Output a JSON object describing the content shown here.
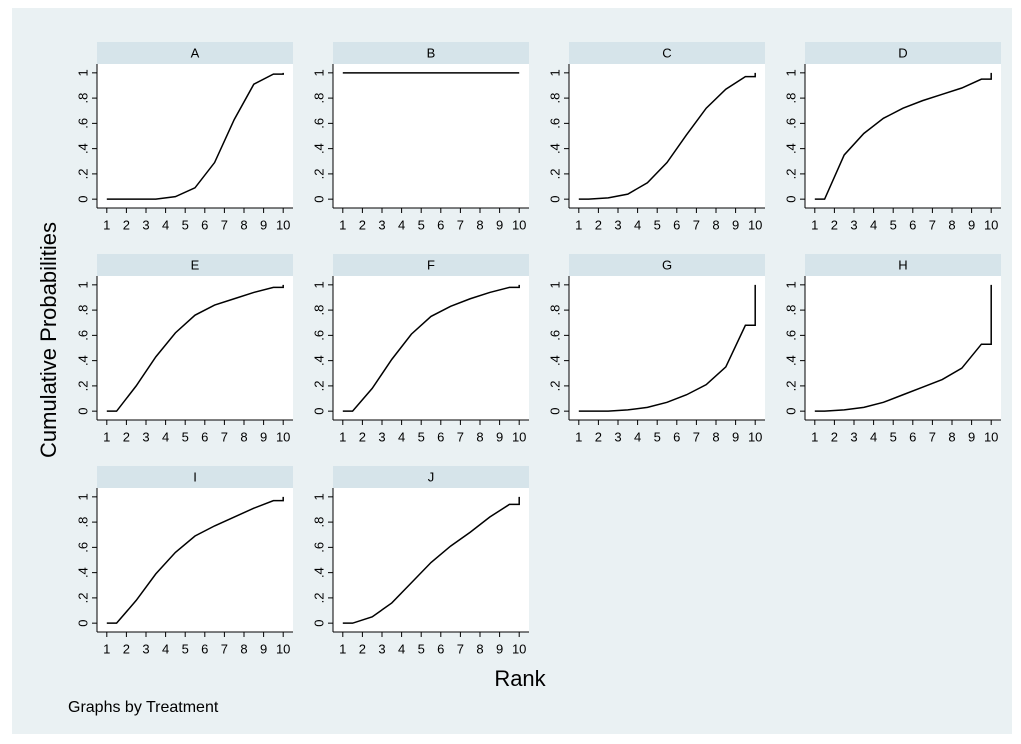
{
  "ylabel": "Cumulative Probabilities",
  "xlabel": "Rank",
  "note": "Graphs by Treatment",
  "chart_data": [
    {
      "type": "line",
      "title": "A",
      "color": "#000000",
      "x": [
        1,
        1.5,
        2.5,
        3.5,
        4.5,
        5.5,
        6.5,
        7.5,
        8.5,
        9.5,
        10,
        10
      ],
      "values": [
        0,
        0,
        0,
        0,
        0.02,
        0.09,
        0.29,
        0.63,
        0.91,
        0.99,
        0.99,
        1
      ],
      "xlim": [
        0.5,
        10.5
      ],
      "ylim": [
        -0.07,
        1.07
      ],
      "xticks": [
        1,
        2,
        3,
        4,
        5,
        6,
        7,
        8,
        9,
        10
      ],
      "yticks": [
        0,
        {
          "value": 0.2,
          "label": ".2"
        },
        {
          "value": 0.4,
          "label": ".4"
        },
        {
          "value": 0.6,
          "label": ".6"
        },
        {
          "value": 0.8,
          "label": ".8"
        },
        1
      ]
    },
    {
      "type": "line",
      "title": "B",
      "color": "#000000",
      "x": [
        1,
        1.5,
        2.5,
        3.5,
        4.5,
        5.5,
        6.5,
        7.5,
        8.5,
        9.5,
        10,
        10
      ],
      "values": [
        1,
        1,
        1,
        1,
        1,
        1,
        1,
        1,
        1,
        1,
        1,
        1
      ],
      "xlim": [
        0.5,
        10.5
      ],
      "ylim": [
        -0.07,
        1.07
      ],
      "xticks": [
        1,
        2,
        3,
        4,
        5,
        6,
        7,
        8,
        9,
        10
      ],
      "yticks": [
        0,
        {
          "value": 0.2,
          "label": ".2"
        },
        {
          "value": 0.4,
          "label": ".4"
        },
        {
          "value": 0.6,
          "label": ".6"
        },
        {
          "value": 0.8,
          "label": ".8"
        },
        1
      ]
    },
    {
      "type": "line",
      "title": "C",
      "color": "#000000",
      "x": [
        1,
        1.5,
        2.5,
        3.5,
        4.5,
        5.5,
        6.5,
        7.5,
        8.5,
        9.5,
        10,
        10
      ],
      "values": [
        0,
        0,
        0.01,
        0.04,
        0.13,
        0.29,
        0.51,
        0.72,
        0.87,
        0.97,
        0.97,
        1
      ],
      "xlim": [
        0.5,
        10.5
      ],
      "ylim": [
        -0.07,
        1.07
      ],
      "xticks": [
        1,
        2,
        3,
        4,
        5,
        6,
        7,
        8,
        9,
        10
      ],
      "yticks": [
        0,
        {
          "value": 0.2,
          "label": ".2"
        },
        {
          "value": 0.4,
          "label": ".4"
        },
        {
          "value": 0.6,
          "label": ".6"
        },
        {
          "value": 0.8,
          "label": ".8"
        },
        1
      ]
    },
    {
      "type": "line",
      "title": "D",
      "color": "#000000",
      "x": [
        1,
        1.5,
        2.5,
        3.5,
        4.5,
        5.5,
        6.5,
        7.5,
        8.5,
        9.5,
        10,
        10
      ],
      "values": [
        0,
        0,
        0.35,
        0.52,
        0.64,
        0.72,
        0.78,
        0.83,
        0.88,
        0.95,
        0.95,
        1
      ],
      "xlim": [
        0.5,
        10.5
      ],
      "ylim": [
        -0.07,
        1.07
      ],
      "xticks": [
        1,
        2,
        3,
        4,
        5,
        6,
        7,
        8,
        9,
        10
      ],
      "yticks": [
        0,
        {
          "value": 0.2,
          "label": ".2"
        },
        {
          "value": 0.4,
          "label": ".4"
        },
        {
          "value": 0.6,
          "label": ".6"
        },
        {
          "value": 0.8,
          "label": ".8"
        },
        1
      ]
    },
    {
      "type": "line",
      "title": "E",
      "color": "#000000",
      "x": [
        1,
        1.5,
        2.5,
        3.5,
        4.5,
        5.5,
        6.5,
        7.5,
        8.5,
        9.5,
        10,
        10
      ],
      "values": [
        0,
        0,
        0.2,
        0.43,
        0.62,
        0.76,
        0.84,
        0.89,
        0.94,
        0.98,
        0.98,
        1
      ],
      "xlim": [
        0.5,
        10.5
      ],
      "ylim": [
        -0.07,
        1.07
      ],
      "xticks": [
        1,
        2,
        3,
        4,
        5,
        6,
        7,
        8,
        9,
        10
      ],
      "yticks": [
        0,
        {
          "value": 0.2,
          "label": ".2"
        },
        {
          "value": 0.4,
          "label": ".4"
        },
        {
          "value": 0.6,
          "label": ".6"
        },
        {
          "value": 0.8,
          "label": ".8"
        },
        1
      ]
    },
    {
      "type": "line",
      "title": "F",
      "color": "#000000",
      "x": [
        1,
        1.5,
        2.5,
        3.5,
        4.5,
        5.5,
        6.5,
        7.5,
        8.5,
        9.5,
        10,
        10
      ],
      "values": [
        0,
        0,
        0.18,
        0.41,
        0.61,
        0.75,
        0.83,
        0.89,
        0.94,
        0.98,
        0.98,
        1
      ],
      "xlim": [
        0.5,
        10.5
      ],
      "ylim": [
        -0.07,
        1.07
      ],
      "xticks": [
        1,
        2,
        3,
        4,
        5,
        6,
        7,
        8,
        9,
        10
      ],
      "yticks": [
        0,
        {
          "value": 0.2,
          "label": ".2"
        },
        {
          "value": 0.4,
          "label": ".4"
        },
        {
          "value": 0.6,
          "label": ".6"
        },
        {
          "value": 0.8,
          "label": ".8"
        },
        1
      ]
    },
    {
      "type": "line",
      "title": "G",
      "color": "#000000",
      "x": [
        1,
        1.5,
        2.5,
        3.5,
        4.5,
        5.5,
        6.5,
        7.5,
        8.5,
        9.5,
        10,
        10
      ],
      "values": [
        0,
        0,
        0,
        0.01,
        0.03,
        0.07,
        0.13,
        0.21,
        0.35,
        0.68,
        0.68,
        1
      ],
      "xlim": [
        0.5,
        10.5
      ],
      "ylim": [
        -0.07,
        1.07
      ],
      "xticks": [
        1,
        2,
        3,
        4,
        5,
        6,
        7,
        8,
        9,
        10
      ],
      "yticks": [
        0,
        {
          "value": 0.2,
          "label": ".2"
        },
        {
          "value": 0.4,
          "label": ".4"
        },
        {
          "value": 0.6,
          "label": ".6"
        },
        {
          "value": 0.8,
          "label": ".8"
        },
        1
      ]
    },
    {
      "type": "line",
      "title": "H",
      "color": "#000000",
      "x": [
        1,
        1.5,
        2.5,
        3.5,
        4.5,
        5.5,
        6.5,
        7.5,
        8.5,
        9.5,
        10,
        10
      ],
      "values": [
        0,
        0,
        0.01,
        0.03,
        0.07,
        0.13,
        0.19,
        0.25,
        0.34,
        0.53,
        0.53,
        1
      ],
      "xlim": [
        0.5,
        10.5
      ],
      "ylim": [
        -0.07,
        1.07
      ],
      "xticks": [
        1,
        2,
        3,
        4,
        5,
        6,
        7,
        8,
        9,
        10
      ],
      "yticks": [
        0,
        {
          "value": 0.2,
          "label": ".2"
        },
        {
          "value": 0.4,
          "label": ".4"
        },
        {
          "value": 0.6,
          "label": ".6"
        },
        {
          "value": 0.8,
          "label": ".8"
        },
        1
      ]
    },
    {
      "type": "line",
      "title": "I",
      "color": "#000000",
      "x": [
        1,
        1.5,
        2.5,
        3.5,
        4.5,
        5.5,
        6.5,
        7.5,
        8.5,
        9.5,
        10,
        10
      ],
      "values": [
        0,
        0,
        0.18,
        0.39,
        0.56,
        0.69,
        0.77,
        0.84,
        0.91,
        0.97,
        0.97,
        1
      ],
      "xlim": [
        0.5,
        10.5
      ],
      "ylim": [
        -0.07,
        1.07
      ],
      "xticks": [
        1,
        2,
        3,
        4,
        5,
        6,
        7,
        8,
        9,
        10
      ],
      "yticks": [
        0,
        {
          "value": 0.2,
          "label": ".2"
        },
        {
          "value": 0.4,
          "label": ".4"
        },
        {
          "value": 0.6,
          "label": ".6"
        },
        {
          "value": 0.8,
          "label": ".8"
        },
        1
      ]
    },
    {
      "type": "line",
      "title": "J",
      "color": "#000000",
      "x": [
        1,
        1.5,
        2.5,
        3.5,
        4.5,
        5.5,
        6.5,
        7.5,
        8.5,
        9.5,
        10,
        10
      ],
      "values": [
        0,
        0,
        0.05,
        0.16,
        0.32,
        0.48,
        0.61,
        0.72,
        0.84,
        0.94,
        0.94,
        1
      ],
      "xlim": [
        0.5,
        10.5
      ],
      "ylim": [
        -0.07,
        1.07
      ],
      "xticks": [
        1,
        2,
        3,
        4,
        5,
        6,
        7,
        8,
        9,
        10
      ],
      "yticks": [
        0,
        {
          "value": 0.2,
          "label": ".2"
        },
        {
          "value": 0.4,
          "label": ".4"
        },
        {
          "value": 0.6,
          "label": ".6"
        },
        {
          "value": 0.8,
          "label": ".8"
        },
        1
      ]
    }
  ]
}
